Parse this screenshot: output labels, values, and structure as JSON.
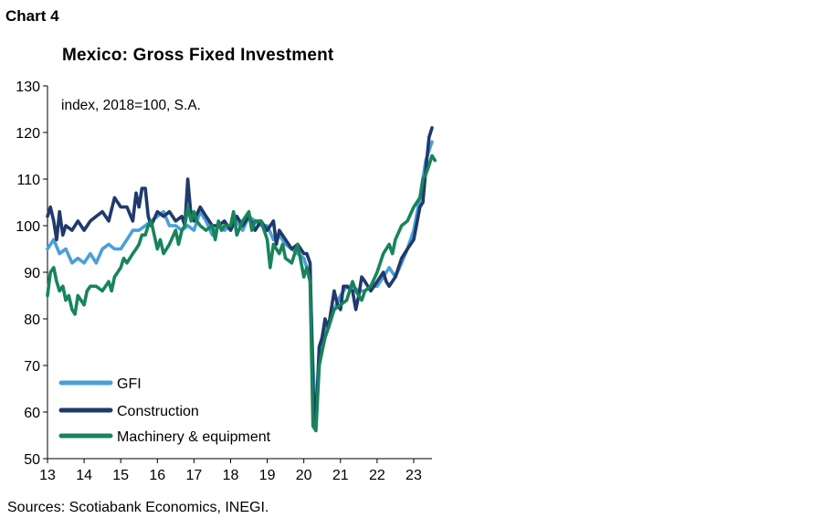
{
  "header": {
    "chart_label": "Chart 4"
  },
  "footer": {
    "source": "Sources: Scotiabank Economics, INEGI."
  },
  "chart_data": {
    "type": "line",
    "title": "Mexico: Gross Fixed Investment",
    "annotation": "index, 2018=100, S.A.",
    "xlabel": "",
    "ylabel": "",
    "ylim": [
      50,
      130
    ],
    "yticks": [
      50,
      60,
      70,
      80,
      90,
      100,
      110,
      120,
      130
    ],
    "xlim": [
      2013,
      2023.5
    ],
    "xticks": [
      {
        "value": 2013,
        "label": "13"
      },
      {
        "value": 2014,
        "label": "14"
      },
      {
        "value": 2015,
        "label": "15"
      },
      {
        "value": 2016,
        "label": "16"
      },
      {
        "value": 2017,
        "label": "17"
      },
      {
        "value": 2018,
        "label": "18"
      },
      {
        "value": 2019,
        "label": "19"
      },
      {
        "value": 2020,
        "label": "20"
      },
      {
        "value": 2021,
        "label": "21"
      },
      {
        "value": 2022,
        "label": "22"
      },
      {
        "value": 2023,
        "label": "23"
      }
    ],
    "grid": false,
    "legend_position": "bottom-left",
    "series": [
      {
        "name": "GFI",
        "color": "#4a9fd8",
        "points": [
          [
            2013.0,
            95
          ],
          [
            2013.17,
            97
          ],
          [
            2013.33,
            94
          ],
          [
            2013.5,
            95
          ],
          [
            2013.67,
            92
          ],
          [
            2013.83,
            93
          ],
          [
            2014.0,
            92
          ],
          [
            2014.17,
            94
          ],
          [
            2014.33,
            92
          ],
          [
            2014.5,
            95
          ],
          [
            2014.67,
            96
          ],
          [
            2014.83,
            95
          ],
          [
            2015.0,
            95
          ],
          [
            2015.17,
            97
          ],
          [
            2015.33,
            99
          ],
          [
            2015.5,
            99
          ],
          [
            2015.67,
            100
          ],
          [
            2015.83,
            101
          ],
          [
            2016.0,
            102
          ],
          [
            2016.17,
            103
          ],
          [
            2016.33,
            100
          ],
          [
            2016.5,
            100
          ],
          [
            2016.67,
            99
          ],
          [
            2016.83,
            100
          ],
          [
            2017.0,
            99
          ],
          [
            2017.17,
            103
          ],
          [
            2017.33,
            101
          ],
          [
            2017.5,
            98
          ],
          [
            2017.67,
            100
          ],
          [
            2017.83,
            99
          ],
          [
            2018.0,
            100
          ],
          [
            2018.17,
            101
          ],
          [
            2018.33,
            99
          ],
          [
            2018.5,
            102
          ],
          [
            2018.67,
            101
          ],
          [
            2018.83,
            100
          ],
          [
            2019.0,
            100
          ],
          [
            2019.17,
            97
          ],
          [
            2019.33,
            98
          ],
          [
            2019.5,
            96
          ],
          [
            2019.67,
            95
          ],
          [
            2019.83,
            94
          ],
          [
            2020.0,
            93
          ],
          [
            2020.08,
            91
          ],
          [
            2020.17,
            89
          ],
          [
            2020.25,
            70
          ],
          [
            2020.33,
            58
          ],
          [
            2020.42,
            70
          ],
          [
            2020.5,
            76
          ],
          [
            2020.67,
            79
          ],
          [
            2020.83,
            82
          ],
          [
            2021.0,
            85
          ],
          [
            2021.17,
            87
          ],
          [
            2021.33,
            87
          ],
          [
            2021.5,
            86
          ],
          [
            2021.67,
            86
          ],
          [
            2021.83,
            87
          ],
          [
            2022.0,
            87
          ],
          [
            2022.17,
            89
          ],
          [
            2022.33,
            91
          ],
          [
            2022.5,
            89
          ],
          [
            2022.67,
            92
          ],
          [
            2022.83,
            95
          ],
          [
            2023.0,
            99
          ],
          [
            2023.17,
            106
          ],
          [
            2023.33,
            114
          ],
          [
            2023.5,
            118
          ]
        ]
      },
      {
        "name": "Construction",
        "color": "#1f3a6b",
        "points": [
          [
            2013.0,
            102
          ],
          [
            2013.08,
            104
          ],
          [
            2013.17,
            101
          ],
          [
            2013.25,
            97
          ],
          [
            2013.33,
            103
          ],
          [
            2013.42,
            98
          ],
          [
            2013.5,
            100
          ],
          [
            2013.67,
            99
          ],
          [
            2013.83,
            101
          ],
          [
            2014.0,
            99
          ],
          [
            2014.17,
            101
          ],
          [
            2014.33,
            102
          ],
          [
            2014.5,
            103
          ],
          [
            2014.67,
            101
          ],
          [
            2014.83,
            106
          ],
          [
            2015.0,
            104
          ],
          [
            2015.17,
            104
          ],
          [
            2015.33,
            101
          ],
          [
            2015.42,
            107
          ],
          [
            2015.5,
            104
          ],
          [
            2015.58,
            108
          ],
          [
            2015.67,
            108
          ],
          [
            2015.75,
            102
          ],
          [
            2015.83,
            100
          ],
          [
            2016.0,
            103
          ],
          [
            2016.17,
            102
          ],
          [
            2016.33,
            103
          ],
          [
            2016.5,
            101
          ],
          [
            2016.67,
            102
          ],
          [
            2016.75,
            100
          ],
          [
            2016.83,
            110
          ],
          [
            2016.92,
            102
          ],
          [
            2017.0,
            101
          ],
          [
            2017.17,
            104
          ],
          [
            2017.33,
            102
          ],
          [
            2017.5,
            100
          ],
          [
            2017.67,
            100
          ],
          [
            2017.83,
            101
          ],
          [
            2018.0,
            99
          ],
          [
            2018.17,
            102
          ],
          [
            2018.33,
            100
          ],
          [
            2018.5,
            102
          ],
          [
            2018.67,
            99
          ],
          [
            2018.83,
            101
          ],
          [
            2019.0,
            99
          ],
          [
            2019.17,
            101
          ],
          [
            2019.25,
            96
          ],
          [
            2019.33,
            99
          ],
          [
            2019.5,
            97
          ],
          [
            2019.67,
            95
          ],
          [
            2019.83,
            96
          ],
          [
            2020.0,
            94
          ],
          [
            2020.08,
            94
          ],
          [
            2020.17,
            92
          ],
          [
            2020.25,
            65
          ],
          [
            2020.33,
            58
          ],
          [
            2020.42,
            74
          ],
          [
            2020.5,
            76
          ],
          [
            2020.58,
            80
          ],
          [
            2020.67,
            78
          ],
          [
            2020.83,
            86
          ],
          [
            2020.92,
            83
          ],
          [
            2021.0,
            82
          ],
          [
            2021.08,
            87
          ],
          [
            2021.17,
            87
          ],
          [
            2021.33,
            86
          ],
          [
            2021.42,
            82
          ],
          [
            2021.5,
            85
          ],
          [
            2021.58,
            89
          ],
          [
            2021.67,
            88
          ],
          [
            2021.83,
            86
          ],
          [
            2022.0,
            88
          ],
          [
            2022.17,
            90
          ],
          [
            2022.25,
            88
          ],
          [
            2022.33,
            87
          ],
          [
            2022.5,
            89
          ],
          [
            2022.67,
            93
          ],
          [
            2022.83,
            95
          ],
          [
            2023.0,
            97
          ],
          [
            2023.17,
            104
          ],
          [
            2023.25,
            105
          ],
          [
            2023.33,
            112
          ],
          [
            2023.42,
            119
          ],
          [
            2023.5,
            121
          ]
        ]
      },
      {
        "name": "Machinery & equipment",
        "color": "#17845a",
        "points": [
          [
            2013.0,
            85
          ],
          [
            2013.08,
            90
          ],
          [
            2013.17,
            91
          ],
          [
            2013.25,
            88
          ],
          [
            2013.33,
            86
          ],
          [
            2013.42,
            87
          ],
          [
            2013.5,
            84
          ],
          [
            2013.58,
            85
          ],
          [
            2013.67,
            82
          ],
          [
            2013.75,
            81
          ],
          [
            2013.83,
            85
          ],
          [
            2014.0,
            83
          ],
          [
            2014.08,
            86
          ],
          [
            2014.17,
            87
          ],
          [
            2014.33,
            87
          ],
          [
            2014.5,
            86
          ],
          [
            2014.67,
            88
          ],
          [
            2014.75,
            86
          ],
          [
            2014.83,
            89
          ],
          [
            2015.0,
            91
          ],
          [
            2015.08,
            93
          ],
          [
            2015.17,
            92
          ],
          [
            2015.33,
            94
          ],
          [
            2015.42,
            95
          ],
          [
            2015.5,
            96
          ],
          [
            2015.58,
            98
          ],
          [
            2015.67,
            98
          ],
          [
            2015.75,
            100
          ],
          [
            2015.83,
            101
          ],
          [
            2016.0,
            95
          ],
          [
            2016.08,
            97
          ],
          [
            2016.17,
            94
          ],
          [
            2016.33,
            96
          ],
          [
            2016.5,
            99
          ],
          [
            2016.58,
            96
          ],
          [
            2016.67,
            99
          ],
          [
            2016.75,
            100
          ],
          [
            2016.83,
            104
          ],
          [
            2016.92,
            101
          ],
          [
            2017.0,
            103
          ],
          [
            2017.08,
            101
          ],
          [
            2017.17,
            100
          ],
          [
            2017.33,
            99
          ],
          [
            2017.5,
            100
          ],
          [
            2017.58,
            97
          ],
          [
            2017.67,
            101
          ],
          [
            2017.75,
            99
          ],
          [
            2017.83,
            100
          ],
          [
            2018.0,
            100
          ],
          [
            2018.08,
            103
          ],
          [
            2018.17,
            98
          ],
          [
            2018.33,
            101
          ],
          [
            2018.5,
            103
          ],
          [
            2018.58,
            99
          ],
          [
            2018.67,
            101
          ],
          [
            2018.83,
            101
          ],
          [
            2019.0,
            97
          ],
          [
            2019.08,
            91
          ],
          [
            2019.17,
            96
          ],
          [
            2019.33,
            94
          ],
          [
            2019.42,
            96
          ],
          [
            2019.5,
            93
          ],
          [
            2019.67,
            92
          ],
          [
            2019.83,
            96
          ],
          [
            2020.0,
            89
          ],
          [
            2020.08,
            91
          ],
          [
            2020.17,
            88
          ],
          [
            2020.25,
            57
          ],
          [
            2020.33,
            56
          ],
          [
            2020.42,
            70
          ],
          [
            2020.5,
            73
          ],
          [
            2020.58,
            76
          ],
          [
            2020.67,
            78
          ],
          [
            2020.83,
            82
          ],
          [
            2021.0,
            83
          ],
          [
            2021.17,
            84
          ],
          [
            2021.33,
            88
          ],
          [
            2021.42,
            86
          ],
          [
            2021.5,
            85
          ],
          [
            2021.58,
            84
          ],
          [
            2021.67,
            86
          ],
          [
            2021.83,
            87
          ],
          [
            2022.0,
            90
          ],
          [
            2022.17,
            94
          ],
          [
            2022.33,
            96
          ],
          [
            2022.42,
            94
          ],
          [
            2022.5,
            97
          ],
          [
            2022.67,
            100
          ],
          [
            2022.83,
            101
          ],
          [
            2023.0,
            104
          ],
          [
            2023.17,
            106
          ],
          [
            2023.25,
            110
          ],
          [
            2023.33,
            111
          ],
          [
            2023.42,
            113
          ],
          [
            2023.5,
            115
          ],
          [
            2023.58,
            114
          ]
        ]
      }
    ]
  }
}
